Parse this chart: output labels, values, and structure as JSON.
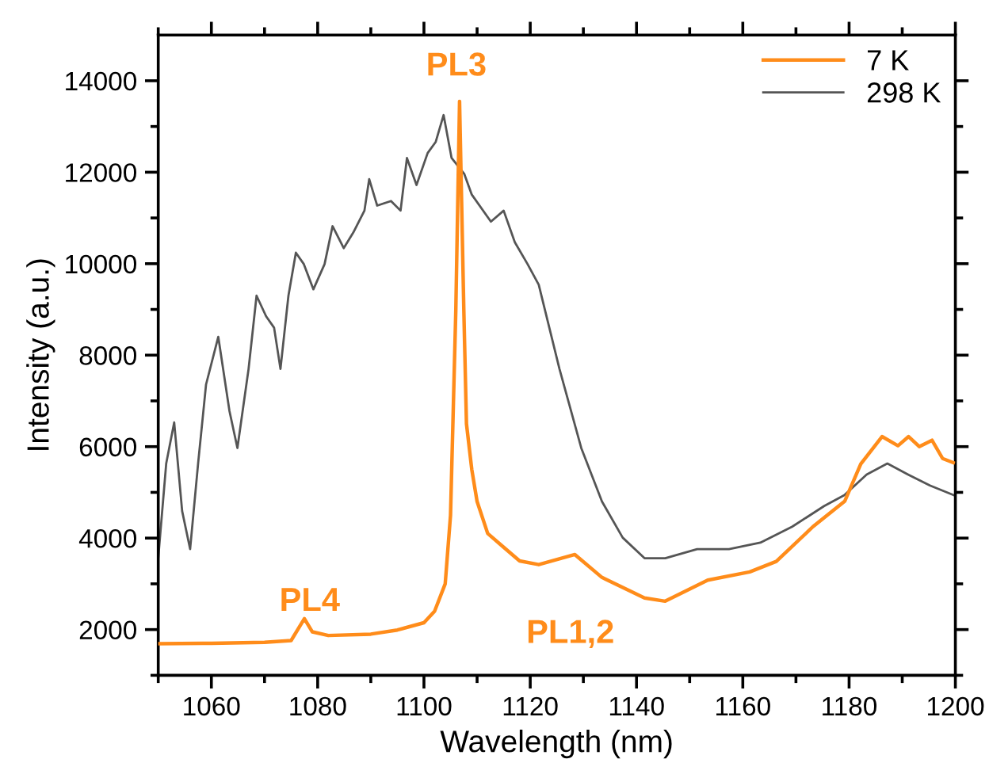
{
  "chart_data": {
    "type": "line",
    "xlabel": "Wavelength (nm)",
    "ylabel": "Intensity (a.u.)",
    "xlim": [
      1050,
      1200
    ],
    "xticks": [
      1060,
      1080,
      1100,
      1120,
      1140,
      1160,
      1180,
      1200
    ],
    "ylim": [
      1000,
      15000
    ],
    "yticks": [
      2000,
      4000,
      6000,
      8000,
      10000,
      12000,
      14000
    ],
    "grid": false,
    "legend": "top right",
    "marker": "none",
    "line_style": "solid",
    "annotations": [
      "PL3",
      "PL4",
      "PL1,2"
    ],
    "series": [
      {
        "name": "7 K",
        "color": "#ff8c1a",
        "x": [
          1050,
          1060,
          1070,
          1075,
          1077.5,
          1079,
          1082,
          1090,
          1095,
          1100,
          1102,
          1104,
          1105,
          1106,
          1106.7,
          1107.5,
          1108,
          1109,
          1110,
          1112,
          1115,
          1118,
          1121.6,
          1128.4,
          1133.5,
          1141.5,
          1145.4,
          1153.4,
          1161.3,
          1166.3,
          1173.2,
          1179.2,
          1182.2,
          1186.2,
          1189.2,
          1191.2,
          1193.2,
          1195.6,
          1197.6,
          1199.6
        ],
        "values": [
          1690,
          1700,
          1720,
          1760,
          2240,
          1950,
          1870,
          1900,
          1990,
          2150,
          2400,
          3000,
          4500,
          9000,
          13550,
          9000,
          6500,
          5500,
          4800,
          4100,
          3800,
          3500,
          3420,
          3640,
          3140,
          2690,
          2620,
          3080,
          3260,
          3490,
          4250,
          4810,
          5620,
          6220,
          6020,
          6220,
          6000,
          6140,
          5740,
          5650
        ]
      },
      {
        "name": "298 K",
        "color": "#555555",
        "x": [
          1050,
          1051.5,
          1053,
          1054.5,
          1056,
          1057.5,
          1059,
          1061.3,
          1063.4,
          1064.9,
          1067,
          1068.5,
          1070.3,
          1071.8,
          1073,
          1074.5,
          1075.9,
          1077.4,
          1079.2,
          1081.3,
          1082.8,
          1084.9,
          1086.7,
          1088.8,
          1089.7,
          1091.2,
          1093.8,
          1095.6,
          1096.8,
          1098.6,
          1100.7,
          1102.2,
          1103.7,
          1105.2,
          1107.6,
          1109,
          1112.6,
          1115,
          1117.1,
          1119.5,
          1121.6,
          1125.5,
          1129.6,
          1133.5,
          1137.4,
          1141.5,
          1145.4,
          1151.4,
          1157.4,
          1163.3,
          1169.3,
          1175.3,
          1179.1,
          1183.3,
          1187.2,
          1191.1,
          1195.2,
          1199.7
        ],
        "values": [
          3560,
          5630,
          6530,
          4590,
          3760,
          5630,
          7360,
          8400,
          6780,
          5970,
          7700,
          9300,
          8850,
          8600,
          7700,
          9300,
          10240,
          9990,
          9440,
          9990,
          10820,
          10340,
          10680,
          11160,
          11850,
          11270,
          11370,
          11160,
          12310,
          11720,
          12420,
          12660,
          13250,
          12310,
          11960,
          11510,
          10920,
          11160,
          10470,
          9990,
          9540,
          7700,
          5970,
          4800,
          4010,
          3560,
          3560,
          3760,
          3760,
          3900,
          4250,
          4700,
          4940,
          5390,
          5630,
          5390,
          5150,
          4940
        ]
      }
    ]
  }
}
